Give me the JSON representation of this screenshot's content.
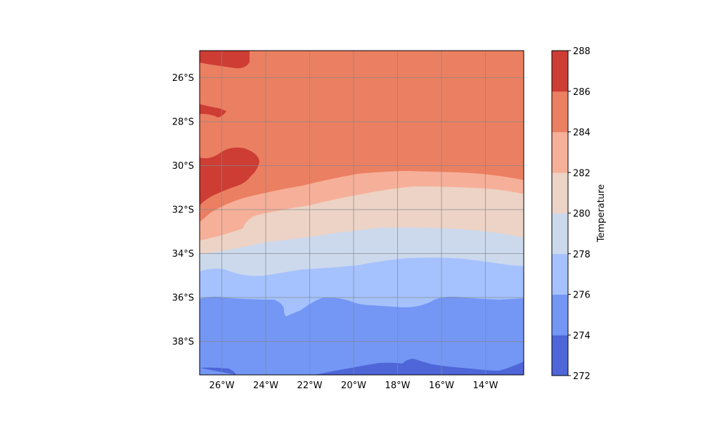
{
  "chart_data": {
    "type": "heatmap",
    "title": "",
    "projection": "PlateCarree",
    "extent": {
      "lon": [
        -27,
        -12.3
      ],
      "lat": [
        -39.5,
        -24.8
      ]
    },
    "gridlines": true,
    "x_ticks": [
      {
        "value": -26,
        "label": "26°W"
      },
      {
        "value": -24,
        "label": "24°W"
      },
      {
        "value": -22,
        "label": "22°W"
      },
      {
        "value": -20,
        "label": "20°W"
      },
      {
        "value": -18,
        "label": "18°W"
      },
      {
        "value": -16,
        "label": "16°W"
      },
      {
        "value": -14,
        "label": "14°W"
      }
    ],
    "y_ticks": [
      {
        "value": -26,
        "label": "26°S"
      },
      {
        "value": -28,
        "label": "28°S"
      },
      {
        "value": -30,
        "label": "30°S"
      },
      {
        "value": -32,
        "label": "32°S"
      },
      {
        "value": -34,
        "label": "34°S"
      },
      {
        "value": -36,
        "label": "36°S"
      },
      {
        "value": -38,
        "label": "38°S"
      }
    ],
    "colorbar": {
      "label": "Temperature",
      "levels": [
        272,
        274,
        276,
        278,
        280,
        282,
        284,
        286,
        288
      ],
      "colors": [
        "#4e66d8",
        "#7497f5",
        "#a5c2fe",
        "#ccd9ed",
        "#ecd3c6",
        "#f6b099",
        "#eb7f62",
        "#cd3d34"
      ],
      "tick_labels": [
        "272",
        "274",
        "276",
        "278",
        "280",
        "282",
        "284",
        "286",
        "288"
      ]
    },
    "contour_boundaries": [
      {
        "between": [
          272,
          274
        ],
        "lat_at_lon": [
          [
            -27,
            -39.2
          ],
          [
            -25.5,
            -39.3
          ],
          [
            -22,
            -39.4
          ],
          [
            -18,
            -39.0
          ],
          [
            -16,
            -39.3
          ],
          [
            -12.3,
            -38.9
          ]
        ]
      },
      {
        "between": [
          274,
          276
        ],
        "lat_at_lon": [
          [
            -27,
            -36.0
          ],
          [
            -25,
            -36.0
          ],
          [
            -23,
            -36.8
          ],
          [
            -21.5,
            -36.0
          ],
          [
            -19,
            -36.4
          ],
          [
            -16,
            -35.9
          ],
          [
            -12.3,
            -36.0
          ]
        ]
      },
      {
        "between": [
          276,
          278
        ],
        "lat_at_lon": [
          [
            -27,
            -34.8
          ],
          [
            -24,
            -35.0
          ],
          [
            -20,
            -34.5
          ],
          [
            -17,
            -34.2
          ],
          [
            -12.3,
            -34.5
          ]
        ]
      },
      {
        "between": [
          278,
          280
        ],
        "lat_at_lon": [
          [
            -27,
            -34.0
          ],
          [
            -24,
            -33.6
          ],
          [
            -20,
            -33.0
          ],
          [
            -17,
            -32.8
          ],
          [
            -12.3,
            -33.2
          ]
        ]
      },
      {
        "between": [
          280,
          282
        ],
        "lat_at_lon": [
          [
            -27,
            -33.4
          ],
          [
            -24,
            -32.5
          ],
          [
            -20,
            -31.5
          ],
          [
            -17,
            -31.0
          ],
          [
            -12.3,
            -31.3
          ]
        ]
      },
      {
        "between": [
          282,
          284
        ],
        "lat_at_lon": [
          [
            -27,
            -32.0
          ],
          [
            -24,
            -31.2
          ],
          [
            -20,
            -30.4
          ],
          [
            -17,
            -30.2
          ],
          [
            -12.3,
            -30.6
          ]
        ]
      },
      {
        "between": [
          284,
          286
        ],
        "regions": "warm patches near 27°W–25°W at 25°S, 27.5°S and 29°S–31.5°S"
      }
    ]
  }
}
